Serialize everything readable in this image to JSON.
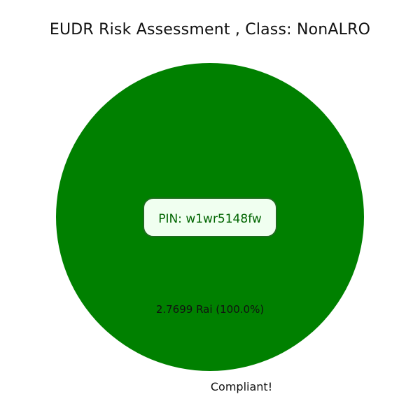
{
  "chart_data": {
    "type": "pie",
    "title": "EUDR Risk Assessment , Class: NonALRO",
    "slices": [
      {
        "label": "Compliant!",
        "value": 2.7699,
        "unit": "Rai",
        "percent": 100.0,
        "value_label": "2.7699 Rai (100.0%)",
        "color": "#008000"
      }
    ],
    "center_box": {
      "text": "PIN: w1wr5148fw",
      "text_color": "#006400",
      "fill_color": "#f0fff0",
      "border_color": "#1e6b1e"
    }
  }
}
